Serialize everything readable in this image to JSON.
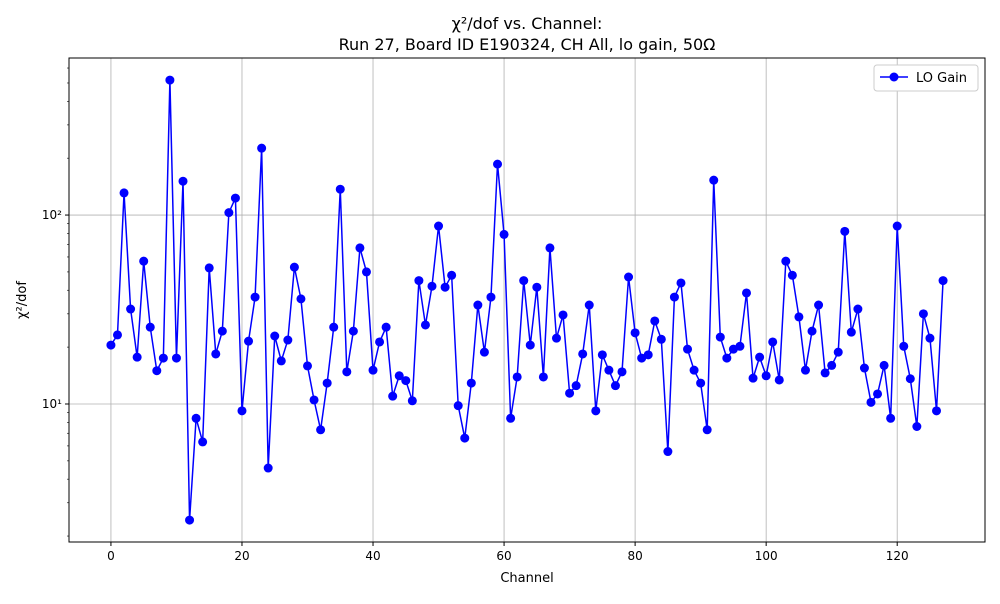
{
  "chart_data": {
    "type": "line",
    "title_line1": "χ²/dof vs. Channel:",
    "title_line2": "Run 27, Board ID E190324, CH All, lo gain, 50Ω",
    "xlabel": "Channel",
    "ylabel": "χ²/dof",
    "xlim": [
      -6.4,
      133.4
    ],
    "ylim": [
      1.86,
      678
    ],
    "yscale": "log",
    "grid": true,
    "legend_placement": "top-right",
    "x_ticks": [
      0,
      20,
      40,
      60,
      80,
      100,
      120
    ],
    "y_ticks": [
      {
        "value": 10,
        "label": "10¹"
      },
      {
        "value": 100,
        "label": "10²"
      }
    ],
    "series": [
      {
        "name": "LO Gain",
        "color": "#0000ff",
        "marker": "circle",
        "x": [
          0,
          1,
          2,
          3,
          4,
          5,
          6,
          7,
          8,
          9,
          10,
          11,
          12,
          13,
          14,
          15,
          16,
          17,
          18,
          19,
          20,
          21,
          22,
          23,
          24,
          25,
          26,
          27,
          28,
          29,
          30,
          31,
          32,
          33,
          34,
          35,
          36,
          37,
          38,
          39,
          40,
          41,
          42,
          43,
          44,
          45,
          46,
          47,
          48,
          49,
          50,
          51,
          52,
          53,
          54,
          55,
          56,
          57,
          58,
          59,
          60,
          61,
          62,
          63,
          64,
          65,
          66,
          67,
          68,
          69,
          70,
          71,
          72,
          73,
          74,
          75,
          76,
          77,
          78,
          79,
          80,
          81,
          82,
          83,
          84,
          85,
          86,
          87,
          88,
          89,
          90,
          91,
          92,
          93,
          94,
          95,
          96,
          97,
          98,
          99,
          100,
          101,
          102,
          103,
          104,
          105,
          106,
          107,
          108,
          109,
          110,
          111,
          112,
          113,
          114,
          115,
          116,
          117,
          118,
          119,
          120,
          121,
          122,
          123,
          124,
          125,
          126,
          127
        ],
        "y": [
          20.5,
          23.2,
          131,
          31.8,
          17.7,
          57,
          25.5,
          15,
          17.5,
          518,
          17.5,
          151,
          2.43,
          8.4,
          6.3,
          52.5,
          18.4,
          24.3,
          103,
          123,
          9.2,
          21.5,
          36.8,
          226,
          4.58,
          22.9,
          16.9,
          21.8,
          53,
          36,
          15.9,
          10.5,
          7.3,
          12.9,
          25.5,
          137,
          14.8,
          24.3,
          67,
          50,
          15.1,
          21.3,
          25.5,
          11,
          14.1,
          13.3,
          10.4,
          45,
          26.2,
          42,
          87.5,
          41.5,
          48,
          9.8,
          6.6,
          12.9,
          33.4,
          18.8,
          36.8,
          186,
          79,
          8.4,
          13.9,
          45,
          20.5,
          41.5,
          13.9,
          67,
          22.3,
          29.6,
          11.4,
          12.5,
          18.4,
          33.4,
          9.2,
          18.2,
          15.1,
          12.5,
          14.8,
          47,
          23.8,
          17.5,
          18.2,
          27.5,
          22,
          5.6,
          36.8,
          43.7,
          19.5,
          15.1,
          12.9,
          7.3,
          153,
          22.6,
          17.5,
          19.5,
          20.2,
          38.7,
          13.7,
          17.7,
          14.1,
          21.3,
          13.4,
          57,
          48,
          28.9,
          15.1,
          24.3,
          33.4,
          14.6,
          16,
          18.8,
          82,
          24,
          31.8,
          15.5,
          10.2,
          11.3,
          16,
          8.4,
          87.5,
          20.2,
          13.6,
          7.6,
          30,
          22.3,
          9.2,
          45
        ]
      }
    ]
  }
}
